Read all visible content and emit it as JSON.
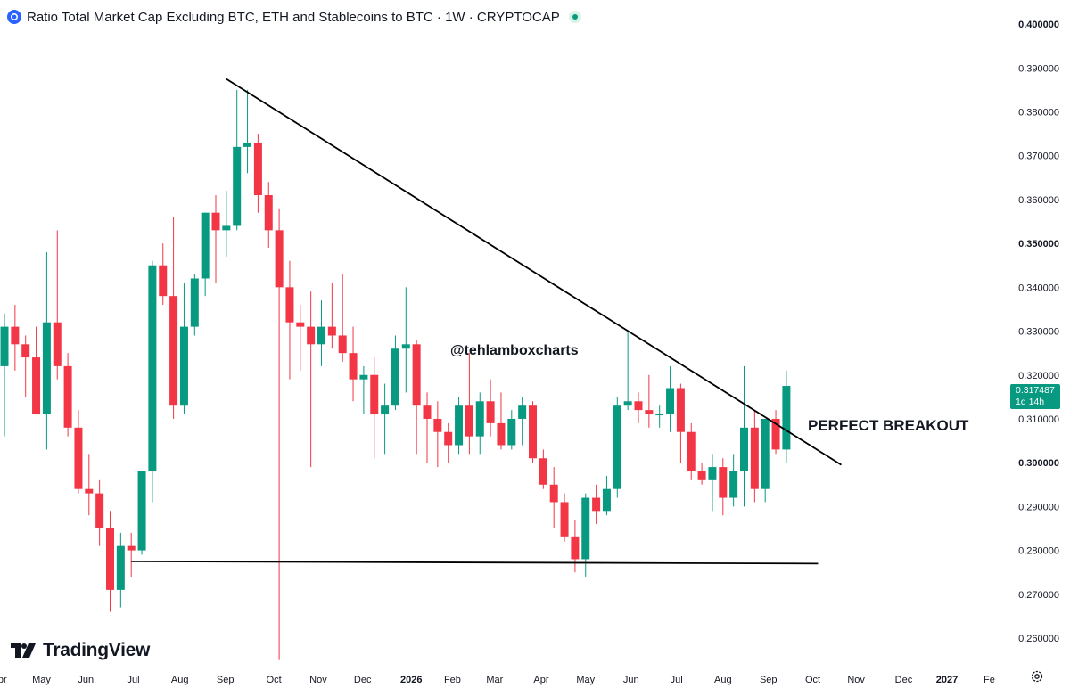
{
  "header": {
    "title": "Ratio Total Market Cap Excluding BTC, ETH and Stablecoins to BTC · 1W · CRYPTOCAP"
  },
  "annotations": {
    "watermark_text": "@tehlamboxcharts",
    "breakout_text": "PERFECT BREAKOUT"
  },
  "last_price": {
    "value": "0.317487",
    "countdown": "1d 14h"
  },
  "logo": {
    "text": "TradingView"
  },
  "colors": {
    "up": "#089981",
    "down": "#f23645",
    "trendline": "#000000",
    "text": "#131722"
  },
  "icons": {
    "symbol": "cryptocap-icon",
    "status": "market-status-dot",
    "settings": "gear-icon",
    "logo": "tradingview-logo-icon"
  },
  "chart_data": {
    "type": "candlestick",
    "title": "Ratio Total Market Cap Excluding BTC, ETH and Stablecoins to BTC · 1W · CRYPTOCAP",
    "interval": "1W",
    "y_axis": {
      "range": [
        0.2535,
        0.4055
      ],
      "ticks": [
        "0.400000",
        "0.390000",
        "0.380000",
        "0.370000",
        "0.360000",
        "0.350000",
        "0.340000",
        "0.330000",
        "0.320000",
        "0.310000",
        "0.300000",
        "0.290000",
        "0.280000",
        "0.270000",
        "0.260000"
      ],
      "bold_ticks": [
        "0.400000",
        "0.350000",
        "0.300000"
      ]
    },
    "x_axis": {
      "labels": [
        {
          "text": "Apr",
          "week": -0.5
        },
        {
          "text": "May",
          "week": 3.5
        },
        {
          "text": "Jun",
          "week": 7.7
        },
        {
          "text": "Jul",
          "week": 12.2
        },
        {
          "text": "Aug",
          "week": 16.6
        },
        {
          "text": "Sep",
          "week": 20.9
        },
        {
          "text": "Oct",
          "week": 25.5
        },
        {
          "text": "Nov",
          "week": 29.7
        },
        {
          "text": "Dec",
          "week": 33.9
        },
        {
          "text": "2026",
          "week": 38.5,
          "bold": true
        },
        {
          "text": "Feb",
          "week": 42.4
        },
        {
          "text": "Mar",
          "week": 46.4
        },
        {
          "text": "Apr",
          "week": 50.8
        },
        {
          "text": "May",
          "week": 55.0
        },
        {
          "text": "Jun",
          "week": 59.3
        },
        {
          "text": "Jul",
          "week": 63.6
        },
        {
          "text": "Aug",
          "week": 68.0
        },
        {
          "text": "Sep",
          "week": 72.3
        },
        {
          "text": "Oct",
          "week": 76.5
        },
        {
          "text": "Nov",
          "week": 80.6
        },
        {
          "text": "Dec",
          "week": 85.1
        },
        {
          "text": "2027",
          "week": 89.2,
          "bold": true
        },
        {
          "text": "Fe",
          "week": 93.2
        }
      ]
    },
    "candles": [
      {
        "o": 0.322,
        "h": 0.334,
        "l": 0.306,
        "c": 0.331
      },
      {
        "o": 0.331,
        "h": 0.336,
        "l": 0.321,
        "c": 0.327
      },
      {
        "o": 0.327,
        "h": 0.329,
        "l": 0.315,
        "c": 0.324
      },
      {
        "o": 0.324,
        "h": 0.331,
        "l": 0.311,
        "c": 0.311
      },
      {
        "o": 0.311,
        "h": 0.348,
        "l": 0.303,
        "c": 0.332
      },
      {
        "o": 0.332,
        "h": 0.353,
        "l": 0.319,
        "c": 0.322
      },
      {
        "o": 0.322,
        "h": 0.325,
        "l": 0.306,
        "c": 0.308
      },
      {
        "o": 0.308,
        "h": 0.312,
        "l": 0.293,
        "c": 0.294
      },
      {
        "o": 0.294,
        "h": 0.302,
        "l": 0.288,
        "c": 0.293
      },
      {
        "o": 0.293,
        "h": 0.296,
        "l": 0.281,
        "c": 0.285
      },
      {
        "o": 0.285,
        "h": 0.289,
        "l": 0.266,
        "c": 0.271
      },
      {
        "o": 0.271,
        "h": 0.284,
        "l": 0.267,
        "c": 0.281
      },
      {
        "o": 0.281,
        "h": 0.284,
        "l": 0.274,
        "c": 0.28
      },
      {
        "o": 0.28,
        "h": 0.298,
        "l": 0.279,
        "c": 0.298
      },
      {
        "o": 0.298,
        "h": 0.346,
        "l": 0.291,
        "c": 0.345
      },
      {
        "o": 0.345,
        "h": 0.35,
        "l": 0.336,
        "c": 0.338
      },
      {
        "o": 0.338,
        "h": 0.356,
        "l": 0.31,
        "c": 0.313
      },
      {
        "o": 0.313,
        "h": 0.341,
        "l": 0.311,
        "c": 0.331
      },
      {
        "o": 0.331,
        "h": 0.343,
        "l": 0.329,
        "c": 0.342
      },
      {
        "o": 0.342,
        "h": 0.357,
        "l": 0.338,
        "c": 0.357
      },
      {
        "o": 0.357,
        "h": 0.361,
        "l": 0.341,
        "c": 0.353
      },
      {
        "o": 0.353,
        "h": 0.362,
        "l": 0.347,
        "c": 0.354
      },
      {
        "o": 0.354,
        "h": 0.385,
        "l": 0.353,
        "c": 0.372
      },
      {
        "o": 0.372,
        "h": 0.385,
        "l": 0.366,
        "c": 0.373
      },
      {
        "o": 0.373,
        "h": 0.375,
        "l": 0.357,
        "c": 0.361
      },
      {
        "o": 0.361,
        "h": 0.364,
        "l": 0.349,
        "c": 0.353
      },
      {
        "o": 0.353,
        "h": 0.358,
        "l": 0.255,
        "c": 0.34
      },
      {
        "o": 0.34,
        "h": 0.346,
        "l": 0.319,
        "c": 0.332
      },
      {
        "o": 0.332,
        "h": 0.336,
        "l": 0.321,
        "c": 0.331
      },
      {
        "o": 0.331,
        "h": 0.339,
        "l": 0.299,
        "c": 0.327
      },
      {
        "o": 0.327,
        "h": 0.337,
        "l": 0.322,
        "c": 0.331
      },
      {
        "o": 0.331,
        "h": 0.341,
        "l": 0.326,
        "c": 0.329
      },
      {
        "o": 0.329,
        "h": 0.343,
        "l": 0.323,
        "c": 0.325
      },
      {
        "o": 0.325,
        "h": 0.331,
        "l": 0.314,
        "c": 0.319
      },
      {
        "o": 0.319,
        "h": 0.322,
        "l": 0.311,
        "c": 0.32
      },
      {
        "o": 0.32,
        "h": 0.324,
        "l": 0.301,
        "c": 0.311
      },
      {
        "o": 0.311,
        "h": 0.318,
        "l": 0.302,
        "c": 0.313
      },
      {
        "o": 0.313,
        "h": 0.329,
        "l": 0.312,
        "c": 0.326
      },
      {
        "o": 0.326,
        "h": 0.34,
        "l": 0.316,
        "c": 0.327
      },
      {
        "o": 0.327,
        "h": 0.328,
        "l": 0.302,
        "c": 0.313
      },
      {
        "o": 0.313,
        "h": 0.316,
        "l": 0.3,
        "c": 0.31
      },
      {
        "o": 0.31,
        "h": 0.314,
        "l": 0.299,
        "c": 0.307
      },
      {
        "o": 0.307,
        "h": 0.309,
        "l": 0.3,
        "c": 0.304
      },
      {
        "o": 0.304,
        "h": 0.315,
        "l": 0.302,
        "c": 0.313
      },
      {
        "o": 0.313,
        "h": 0.325,
        "l": 0.302,
        "c": 0.306
      },
      {
        "o": 0.306,
        "h": 0.316,
        "l": 0.302,
        "c": 0.314
      },
      {
        "o": 0.314,
        "h": 0.319,
        "l": 0.306,
        "c": 0.309
      },
      {
        "o": 0.309,
        "h": 0.316,
        "l": 0.303,
        "c": 0.304
      },
      {
        "o": 0.304,
        "h": 0.312,
        "l": 0.303,
        "c": 0.31
      },
      {
        "o": 0.31,
        "h": 0.315,
        "l": 0.304,
        "c": 0.313
      },
      {
        "o": 0.313,
        "h": 0.314,
        "l": 0.3,
        "c": 0.301
      },
      {
        "o": 0.301,
        "h": 0.303,
        "l": 0.294,
        "c": 0.295
      },
      {
        "o": 0.295,
        "h": 0.299,
        "l": 0.285,
        "c": 0.291
      },
      {
        "o": 0.291,
        "h": 0.293,
        "l": 0.282,
        "c": 0.283
      },
      {
        "o": 0.283,
        "h": 0.287,
        "l": 0.275,
        "c": 0.278
      },
      {
        "o": 0.278,
        "h": 0.293,
        "l": 0.274,
        "c": 0.292
      },
      {
        "o": 0.292,
        "h": 0.295,
        "l": 0.286,
        "c": 0.289
      },
      {
        "o": 0.289,
        "h": 0.297,
        "l": 0.288,
        "c": 0.294
      },
      {
        "o": 0.294,
        "h": 0.315,
        "l": 0.292,
        "c": 0.313
      },
      {
        "o": 0.313,
        "h": 0.33,
        "l": 0.312,
        "c": 0.314
      },
      {
        "o": 0.314,
        "h": 0.316,
        "l": 0.309,
        "c": 0.312
      },
      {
        "o": 0.312,
        "h": 0.32,
        "l": 0.308,
        "c": 0.311
      },
      {
        "o": 0.311,
        "h": 0.313,
        "l": 0.308,
        "c": 0.311
      },
      {
        "o": 0.311,
        "h": 0.322,
        "l": 0.307,
        "c": 0.317
      },
      {
        "o": 0.317,
        "h": 0.318,
        "l": 0.3,
        "c": 0.307
      },
      {
        "o": 0.307,
        "h": 0.309,
        "l": 0.296,
        "c": 0.298
      },
      {
        "o": 0.298,
        "h": 0.3,
        "l": 0.295,
        "c": 0.296
      },
      {
        "o": 0.296,
        "h": 0.302,
        "l": 0.289,
        "c": 0.299
      },
      {
        "o": 0.299,
        "h": 0.301,
        "l": 0.288,
        "c": 0.292
      },
      {
        "o": 0.292,
        "h": 0.302,
        "l": 0.29,
        "c": 0.298
      },
      {
        "o": 0.298,
        "h": 0.322,
        "l": 0.29,
        "c": 0.308
      },
      {
        "o": 0.308,
        "h": 0.312,
        "l": 0.291,
        "c": 0.294
      },
      {
        "o": 0.294,
        "h": 0.31,
        "l": 0.291,
        "c": 0.31
      },
      {
        "o": 0.31,
        "h": 0.312,
        "l": 0.302,
        "c": 0.303
      },
      {
        "o": 0.303,
        "h": 0.321,
        "l": 0.3,
        "c": 0.3175
      }
    ],
    "trendlines": [
      {
        "name": "descending-resistance",
        "from": {
          "week": 21.0,
          "price": 0.3875
        },
        "to": {
          "week": 79.2,
          "price": 0.2995
        }
      },
      {
        "name": "horizontal-support",
        "from": {
          "week": 12.0,
          "price": 0.2775
        },
        "to": {
          "week": 77.0,
          "price": 0.277
        }
      }
    ]
  }
}
